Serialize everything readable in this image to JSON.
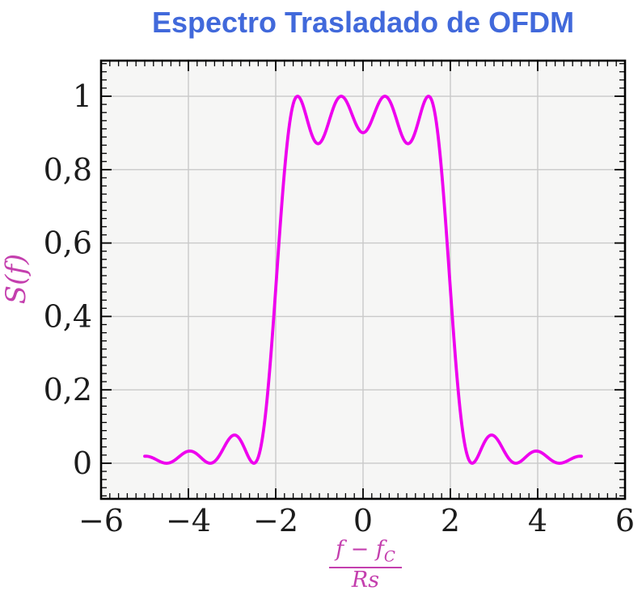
{
  "chart_data": {
    "type": "line",
    "title": "Espectro Trasladado de OFDM",
    "title_color": "#4169db",
    "xlabel": "(f − f_C) / Rs",
    "ylabel": "S(f)",
    "label_color": "#c43fae",
    "xlim": [
      -6,
      6
    ],
    "ylim": [
      -0.097,
      1.097
    ],
    "x_major_ticks": [
      -6,
      -4,
      -2,
      0,
      2,
      4,
      6
    ],
    "x_tick_labels": [
      "−6",
      "−4",
      "−2",
      "0",
      "2",
      "4",
      "6"
    ],
    "y_major_ticks": [
      0,
      0.2,
      0.4,
      0.6,
      0.8,
      1
    ],
    "y_tick_labels": [
      "0",
      "0,2",
      "0,4",
      "0,6",
      "0,8",
      "1"
    ],
    "x_minor_ticks_per_interval": 9,
    "y_minor_ticks_per_interval": 8,
    "grid": "major",
    "grid_color": "#c9c9c9",
    "plot_background": "#f6f6f5",
    "axis_color": "#000000",
    "tick_label_color": "#1c1c1c",
    "legend": false,
    "series": [
      {
        "name": "S(f)",
        "color": "#ee00ee",
        "model": "S(f) = sum over k of sinc^2(f − k)",
        "subcarrier_offsets": [
          -1.5,
          -0.5,
          0.5,
          1.5
        ],
        "x_plot_range": [
          -5,
          5
        ],
        "sample_step": 0.02,
        "key_points": {
          "peaks": [
            [
              -1.5,
              1.0
            ],
            [
              -0.5,
              1.0
            ],
            [
              0.5,
              1.0
            ],
            [
              1.5,
              1.0
            ]
          ],
          "inband_dips": [
            [
              -1,
              0.872
            ],
            [
              0,
              0.901
            ],
            [
              1,
              0.872
            ]
          ],
          "nulls": [
            -4.5,
            -3.5,
            -2.5,
            2.5,
            3.5,
            4.5
          ],
          "sidelobe_peaks": [
            [
              -3,
              0.074
            ],
            [
              -4,
              0.033
            ],
            [
              3,
              0.074
            ],
            [
              4,
              0.033
            ]
          ],
          "endpoints": [
            [
              -5,
              0.019
            ],
            [
              5,
              0.019
            ]
          ]
        }
      }
    ]
  },
  "labels": {
    "ylabel": "S(f)",
    "xlabel_num": "f − f",
    "xlabel_num_sub": "C",
    "xlabel_den": "Rs"
  }
}
